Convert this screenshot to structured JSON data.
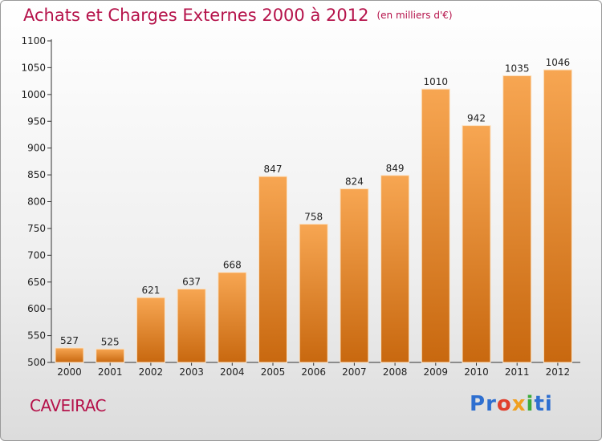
{
  "header": {
    "title": "Achats et Charges Externes 2000 à 2012",
    "subtitle": "(en milliers d'€)"
  },
  "footer": {
    "city": "CAVEIRAC",
    "logo": "Proxiti"
  },
  "colors": {
    "title": "#b5124a",
    "bar_top": "#f7a652",
    "bar_bottom": "#c8680f",
    "logo_letters": [
      "#2e6fd0",
      "#2e6fd0",
      "#e0402d",
      "#f0a020",
      "#3bab3b",
      "#2e6fd0",
      "#2e6fd0"
    ]
  },
  "chart_data": {
    "type": "bar",
    "categories": [
      "2000",
      "2001",
      "2002",
      "2003",
      "2004",
      "2005",
      "2006",
      "2007",
      "2008",
      "2009",
      "2010",
      "2011",
      "2012"
    ],
    "values": [
      527,
      525,
      621,
      637,
      668,
      847,
      758,
      824,
      849,
      1010,
      942,
      1035,
      1046
    ],
    "ylim": [
      500,
      1100
    ],
    "yticks": [
      500,
      550,
      600,
      650,
      700,
      750,
      800,
      850,
      900,
      950,
      1000,
      1050,
      1100
    ],
    "grid": false,
    "legend": "none"
  }
}
